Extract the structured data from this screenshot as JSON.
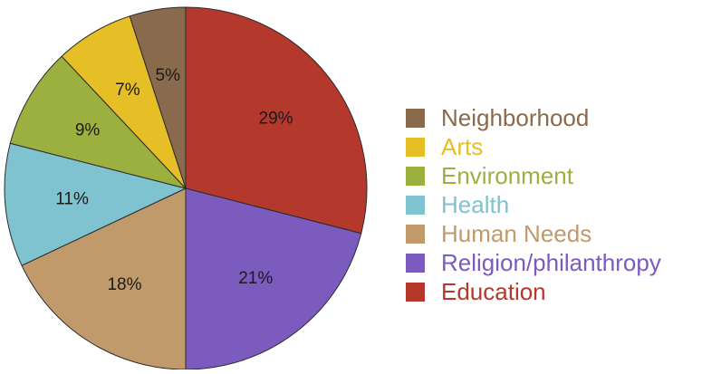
{
  "chart_data": {
    "type": "pie",
    "categories": [
      "Education",
      "Religion/philanthropy",
      "Human Needs",
      "Health",
      "Environment",
      "Arts",
      "Neighborhood"
    ],
    "values": [
      29,
      21,
      18,
      11,
      9,
      7,
      5
    ],
    "data_labels": [
      "29%",
      "21%",
      "18%",
      "11%",
      "9%",
      "7%",
      "5%"
    ],
    "colors": [
      "#b5382d",
      "#7b5bbd",
      "#c19a6b",
      "#7fc2d0",
      "#9cb040",
      "#e6be26",
      "#8a6a4d"
    ],
    "start_angle_deg": 0,
    "direction": "clockwise",
    "legend_position": "right",
    "legend_order": [
      "Neighborhood",
      "Arts",
      "Environment",
      "Health",
      "Human Needs",
      "Religion/philanthropy",
      "Education"
    ],
    "title": ""
  }
}
